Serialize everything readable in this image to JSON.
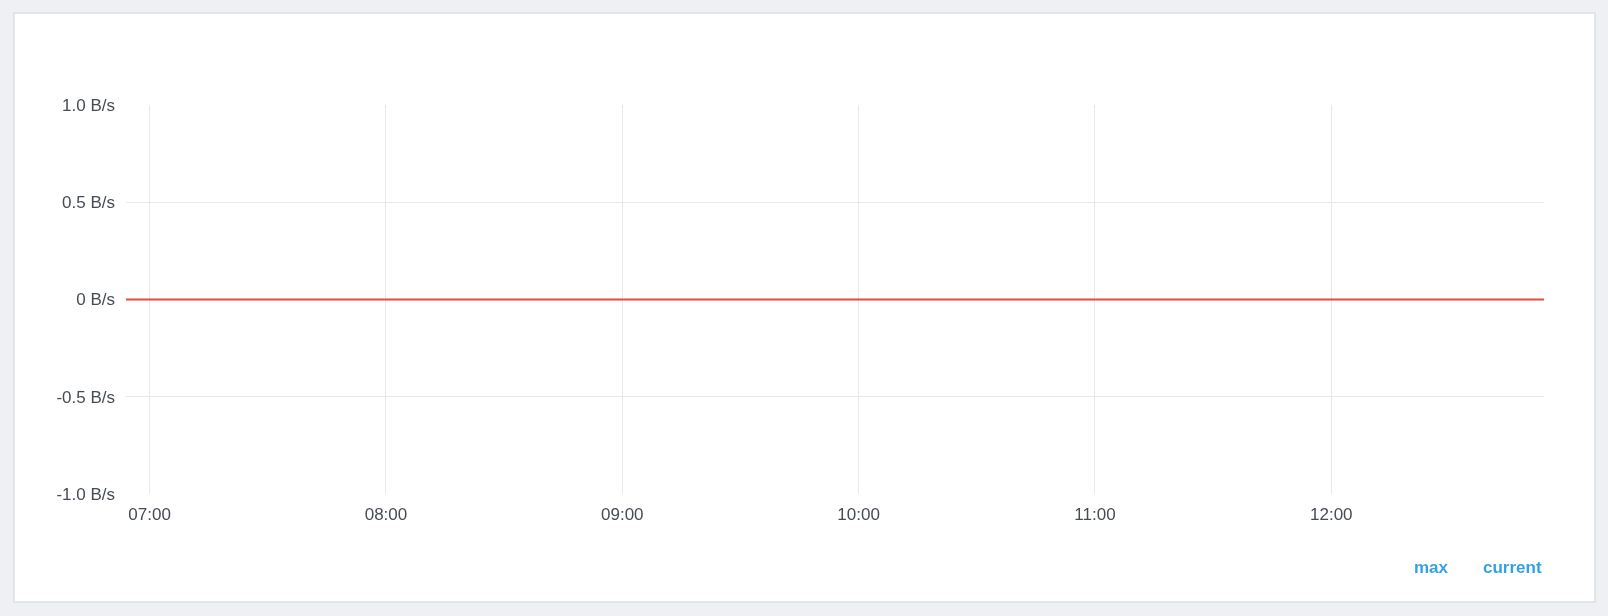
{
  "chart_data": {
    "type": "line",
    "x": [
      6.9,
      12.9
    ],
    "series": [
      {
        "color": "#e24d42",
        "values": [
          0,
          0
        ]
      }
    ],
    "xlim": [
      6.9,
      12.9
    ],
    "xticks": [
      {
        "value": 7,
        "label": "07:00"
      },
      {
        "value": 8,
        "label": "08:00"
      },
      {
        "value": 9,
        "label": "09:00"
      },
      {
        "value": 10,
        "label": "10:00"
      },
      {
        "value": 11,
        "label": "11:00"
      },
      {
        "value": 12,
        "label": "12:00"
      }
    ],
    "ylim": [
      -1.0,
      1.0
    ],
    "yticks": [
      {
        "value": -1.0,
        "label": "-1.0 B/s"
      },
      {
        "value": -0.5,
        "label": "-0.5 B/s"
      },
      {
        "value": 0,
        "label": "0 B/s"
      },
      {
        "value": 0.5,
        "label": "0.5 B/s"
      },
      {
        "value": 1.0,
        "label": "1.0 B/s"
      }
    ],
    "grid": true,
    "annotations": [
      "max",
      "current"
    ]
  }
}
